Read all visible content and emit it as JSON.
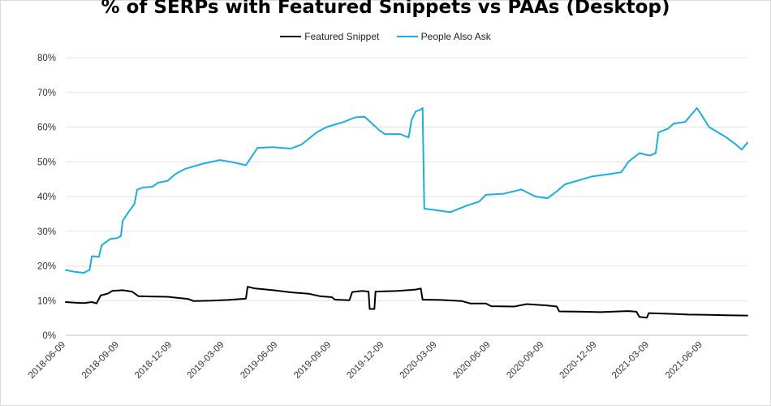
{
  "title": "% of SERPs with Featured Snippets vs PAAs (Desktop)",
  "colors": {
    "featured_snippet": "#000000",
    "people_also_ask": "#1aaee4",
    "grid": "#e3e3e3"
  },
  "chart_data": {
    "type": "line",
    "title": "% of SERPs with Featured Snippets vs PAAs (Desktop)",
    "xlabel": "",
    "ylabel": "",
    "x_ticks": [
      "2018-06-09",
      "2018-09-09",
      "2018-12-09",
      "2019-03-09",
      "2019-06-09",
      "2019-09-09",
      "2019-12-09",
      "2020-03-09",
      "2020-06-09",
      "2020-09-09",
      "2020-12-09",
      "2021-03-09",
      "2021-06-09"
    ],
    "xlim": [
      "2018-06-09",
      "2021-08-25"
    ],
    "y_ticks": [
      "0%",
      "10%",
      "20%",
      "30%",
      "40%",
      "50%",
      "60%",
      "70%",
      "80%"
    ],
    "ylim": [
      0,
      80
    ],
    "grid": "horizontal",
    "legend": "top-center",
    "series": [
      {
        "name": "Featured Snippet",
        "color": "#000000",
        "points": [
          [
            "2018-06-09",
            9.6
          ],
          [
            "2018-06-25",
            9.4
          ],
          [
            "2018-07-10",
            9.3
          ],
          [
            "2018-07-24",
            9.6
          ],
          [
            "2018-08-01",
            9.2
          ],
          [
            "2018-08-08",
            11.5
          ],
          [
            "2018-08-20",
            12.0
          ],
          [
            "2018-08-28",
            12.8
          ],
          [
            "2018-09-15",
            13.0
          ],
          [
            "2018-10-01",
            12.6
          ],
          [
            "2018-10-12",
            11.3
          ],
          [
            "2018-11-01",
            11.2
          ],
          [
            "2018-12-01",
            11.1
          ],
          [
            "2019-01-05",
            10.5
          ],
          [
            "2019-01-15",
            9.9
          ],
          [
            "2019-02-15",
            10.0
          ],
          [
            "2019-03-15",
            10.2
          ],
          [
            "2019-04-08",
            10.5
          ],
          [
            "2019-04-15",
            10.6
          ],
          [
            "2019-04-18",
            14.0
          ],
          [
            "2019-05-01",
            13.5
          ],
          [
            "2019-06-01",
            13.0
          ],
          [
            "2019-07-01",
            12.4
          ],
          [
            "2019-08-01",
            12.0
          ],
          [
            "2019-08-20",
            11.3
          ],
          [
            "2019-09-10",
            11.0
          ],
          [
            "2019-09-15",
            10.3
          ],
          [
            "2019-10-10",
            10.1
          ],
          [
            "2019-10-15",
            12.5
          ],
          [
            "2019-11-01",
            12.8
          ],
          [
            "2019-11-12",
            12.6
          ],
          [
            "2019-11-14",
            7.6
          ],
          [
            "2019-11-22",
            7.6
          ],
          [
            "2019-11-24",
            12.6
          ],
          [
            "2020-01-01",
            12.8
          ],
          [
            "2020-02-01",
            13.2
          ],
          [
            "2020-02-10",
            13.5
          ],
          [
            "2020-02-13",
            10.3
          ],
          [
            "2020-03-15",
            10.2
          ],
          [
            "2020-04-20",
            9.9
          ],
          [
            "2020-05-05",
            9.2
          ],
          [
            "2020-06-01",
            9.2
          ],
          [
            "2020-06-10",
            8.4
          ],
          [
            "2020-07-20",
            8.3
          ],
          [
            "2020-08-10",
            9.0
          ],
          [
            "2020-09-15",
            8.6
          ],
          [
            "2020-10-01",
            8.3
          ],
          [
            "2020-10-05",
            6.9
          ],
          [
            "2020-11-15",
            6.8
          ],
          [
            "2020-12-15",
            6.7
          ],
          [
            "2021-02-01",
            7.0
          ],
          [
            "2021-02-15",
            6.8
          ],
          [
            "2021-02-20",
            5.3
          ],
          [
            "2021-03-05",
            5.1
          ],
          [
            "2021-03-08",
            6.4
          ],
          [
            "2021-04-15",
            6.2
          ],
          [
            "2021-05-15",
            6.0
          ],
          [
            "2021-06-20",
            5.9
          ],
          [
            "2021-07-20",
            5.8
          ],
          [
            "2021-08-25",
            5.7
          ]
        ]
      },
      {
        "name": "People Also Ask",
        "color": "#1aaee4",
        "points": [
          [
            "2018-06-09",
            18.8
          ],
          [
            "2018-06-25",
            18.3
          ],
          [
            "2018-07-10",
            18.0
          ],
          [
            "2018-07-20",
            18.9
          ],
          [
            "2018-07-24",
            22.8
          ],
          [
            "2018-08-05",
            22.6
          ],
          [
            "2018-08-10",
            26.0
          ],
          [
            "2018-08-25",
            27.8
          ],
          [
            "2018-09-05",
            28.0
          ],
          [
            "2018-09-12",
            28.6
          ],
          [
            "2018-09-15",
            33.0
          ],
          [
            "2018-09-25",
            35.5
          ],
          [
            "2018-10-05",
            37.8
          ],
          [
            "2018-10-10",
            42.0
          ],
          [
            "2018-10-20",
            42.6
          ],
          [
            "2018-11-05",
            42.8
          ],
          [
            "2018-11-15",
            44.0
          ],
          [
            "2018-12-01",
            44.5
          ],
          [
            "2018-12-15",
            46.5
          ],
          [
            "2019-01-01",
            48.0
          ],
          [
            "2019-02-01",
            49.5
          ],
          [
            "2019-03-01",
            50.5
          ],
          [
            "2019-03-20",
            50.0
          ],
          [
            "2019-04-15",
            49.0
          ],
          [
            "2019-04-25",
            51.5
          ],
          [
            "2019-05-05",
            54.0
          ],
          [
            "2019-06-01",
            54.2
          ],
          [
            "2019-07-01",
            53.8
          ],
          [
            "2019-07-20",
            55.0
          ],
          [
            "2019-08-15",
            58.5
          ],
          [
            "2019-09-01",
            60.0
          ],
          [
            "2019-10-01",
            61.5
          ],
          [
            "2019-10-20",
            62.8
          ],
          [
            "2019-11-05",
            63.0
          ],
          [
            "2019-11-15",
            61.5
          ],
          [
            "2019-12-01",
            59.0
          ],
          [
            "2019-12-10",
            58.0
          ],
          [
            "2020-01-05",
            58.0
          ],
          [
            "2020-01-20",
            57.0
          ],
          [
            "2020-01-25",
            62.0
          ],
          [
            "2020-02-01",
            64.5
          ],
          [
            "2020-02-10",
            65.0
          ],
          [
            "2020-02-13",
            65.5
          ],
          [
            "2020-02-16",
            36.5
          ],
          [
            "2020-03-01",
            36.2
          ],
          [
            "2020-04-01",
            35.5
          ],
          [
            "2020-05-01",
            37.5
          ],
          [
            "2020-05-20",
            38.5
          ],
          [
            "2020-06-01",
            40.5
          ],
          [
            "2020-07-01",
            40.8
          ],
          [
            "2020-08-01",
            42.0
          ],
          [
            "2020-08-25",
            40.0
          ],
          [
            "2020-09-15",
            39.5
          ],
          [
            "2020-10-01",
            41.5
          ],
          [
            "2020-10-15",
            43.5
          ],
          [
            "2020-11-15",
            45.0
          ],
          [
            "2020-12-01",
            45.8
          ],
          [
            "2021-01-01",
            46.5
          ],
          [
            "2021-01-20",
            47.0
          ],
          [
            "2021-02-01",
            50.0
          ],
          [
            "2021-02-20",
            52.5
          ],
          [
            "2021-03-10",
            51.8
          ],
          [
            "2021-03-20",
            52.5
          ],
          [
            "2021-03-25",
            58.5
          ],
          [
            "2021-04-10",
            59.5
          ],
          [
            "2021-04-20",
            61.0
          ],
          [
            "2021-05-10",
            61.5
          ],
          [
            "2021-05-20",
            63.5
          ],
          [
            "2021-05-30",
            65.5
          ],
          [
            "2021-06-05",
            64.0
          ],
          [
            "2021-06-20",
            60.0
          ],
          [
            "2021-07-05",
            58.5
          ],
          [
            "2021-07-20",
            57.0
          ],
          [
            "2021-08-05",
            55.0
          ],
          [
            "2021-08-15",
            53.5
          ],
          [
            "2021-08-25",
            55.5
          ]
        ]
      }
    ]
  }
}
